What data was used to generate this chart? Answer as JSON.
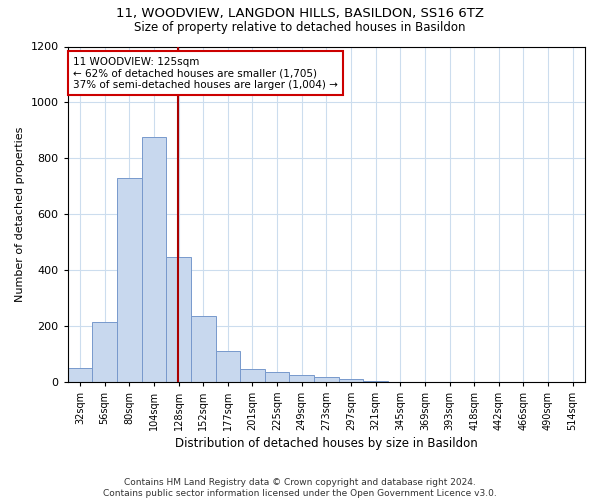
{
  "title1": "11, WOODVIEW, LANGDON HILLS, BASILDON, SS16 6TZ",
  "title2": "Size of property relative to detached houses in Basildon",
  "xlabel": "Distribution of detached houses by size in Basildon",
  "ylabel": "Number of detached properties",
  "footer": "Contains HM Land Registry data © Crown copyright and database right 2024.\nContains public sector information licensed under the Open Government Licence v3.0.",
  "bin_labels": [
    "32sqm",
    "56sqm",
    "80sqm",
    "104sqm",
    "128sqm",
    "152sqm",
    "177sqm",
    "201sqm",
    "225sqm",
    "249sqm",
    "273sqm",
    "297sqm",
    "321sqm",
    "345sqm",
    "369sqm",
    "393sqm",
    "418sqm",
    "442sqm",
    "466sqm",
    "490sqm",
    "514sqm"
  ],
  "bar_values": [
    50,
    215,
    730,
    875,
    445,
    235,
    110,
    45,
    35,
    25,
    17,
    10,
    1,
    0,
    0,
    0,
    0,
    0,
    0,
    0,
    0
  ],
  "bar_color": "#c8d8ee",
  "bar_edge_color": "#7799cc",
  "vline_x": 3.97,
  "vline_color": "#aa0000",
  "ylim": [
    0,
    1200
  ],
  "yticks": [
    0,
    200,
    400,
    600,
    800,
    1000,
    1200
  ],
  "annotation_text": "11 WOODVIEW: 125sqm\n← 62% of detached houses are smaller (1,705)\n37% of semi-detached houses are larger (1,004) →",
  "annotation_box_color": "#ffffff",
  "annotation_box_edge": "#cc0000",
  "grid_color": "#ccddee",
  "background_color": "#ffffff"
}
